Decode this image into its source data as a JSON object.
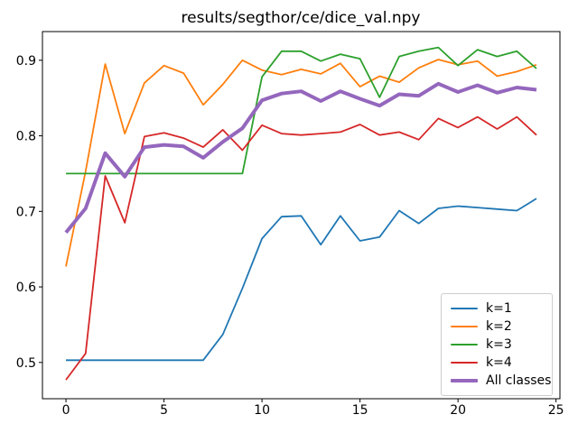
{
  "chart_data": {
    "type": "line",
    "title": "results/segthor/ce/dice_val.npy",
    "xlabel": "",
    "ylabel": "",
    "xlim": [
      -1.2,
      25.2
    ],
    "ylim": [
      0.452,
      0.938
    ],
    "xticks": [
      "0",
      "5",
      "10",
      "15",
      "20",
      "25"
    ],
    "yticks": [
      "0.5",
      "0.6",
      "0.7",
      "0.8",
      "0.9"
    ],
    "grid": false,
    "legend_position": "lower right",
    "x": [
      0,
      1,
      2,
      3,
      4,
      5,
      6,
      7,
      8,
      9,
      10,
      11,
      12,
      13,
      14,
      15,
      16,
      17,
      18,
      19,
      20,
      21,
      22,
      23,
      24
    ],
    "series": [
      {
        "name": "k=1",
        "color": "#1f77b4",
        "line_width": 1.8,
        "values": [
          0.503,
          0.503,
          0.503,
          0.503,
          0.503,
          0.503,
          0.503,
          0.503,
          0.537,
          0.598,
          0.664,
          0.693,
          0.694,
          0.656,
          0.694,
          0.661,
          0.666,
          0.701,
          0.684,
          0.704,
          0.707,
          0.705,
          0.703,
          0.701,
          0.717
        ]
      },
      {
        "name": "k=2",
        "color": "#ff7f0e",
        "line_width": 1.8,
        "values": [
          0.627,
          0.753,
          0.895,
          0.803,
          0.87,
          0.893,
          0.883,
          0.841,
          0.868,
          0.9,
          0.887,
          0.881,
          0.888,
          0.882,
          0.896,
          0.865,
          0.879,
          0.871,
          0.89,
          0.901,
          0.894,
          0.899,
          0.879,
          0.885,
          0.894
        ]
      },
      {
        "name": "k=3",
        "color": "#2ca02c",
        "line_width": 1.8,
        "values": [
          0.75,
          0.75,
          0.75,
          0.75,
          0.75,
          0.75,
          0.75,
          0.75,
          0.75,
          0.75,
          0.878,
          0.912,
          0.912,
          0.899,
          0.908,
          0.902,
          0.851,
          0.905,
          0.912,
          0.917,
          0.893,
          0.914,
          0.905,
          0.912,
          0.889
        ]
      },
      {
        "name": "k=4",
        "color": "#d62728",
        "line_width": 1.8,
        "values": [
          0.477,
          0.512,
          0.747,
          0.685,
          0.799,
          0.804,
          0.797,
          0.785,
          0.808,
          0.781,
          0.814,
          0.803,
          0.801,
          0.803,
          0.805,
          0.815,
          0.801,
          0.805,
          0.795,
          0.823,
          0.811,
          0.825,
          0.809,
          0.825,
          0.801
        ]
      },
      {
        "name": "All classes",
        "color": "#9467bd",
        "line_width": 4,
        "values": [
          0.672,
          0.704,
          0.777,
          0.746,
          0.785,
          0.788,
          0.786,
          0.771,
          0.792,
          0.81,
          0.847,
          0.856,
          0.859,
          0.846,
          0.859,
          0.849,
          0.84,
          0.855,
          0.853,
          0.869,
          0.858,
          0.867,
          0.857,
          0.864,
          0.861
        ]
      }
    ]
  }
}
